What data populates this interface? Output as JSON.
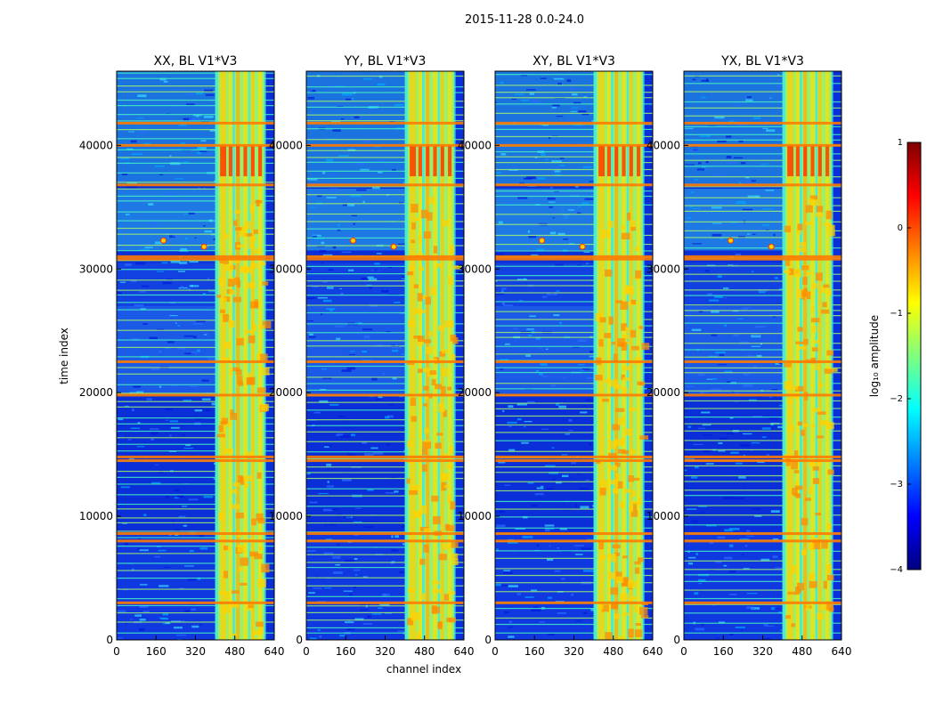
{
  "figure": {
    "suptitle": "2015-11-28 0.0-24.0",
    "xlabel": "channel index",
    "ylabel": "time index"
  },
  "colorbar": {
    "label": "log₁₀ amplitude",
    "ticks": [
      "1",
      "0",
      "−1",
      "−2",
      "−3",
      "−4"
    ],
    "range": [
      -4,
      1
    ],
    "colormap": "jet",
    "jet_colors": [
      "#00007f",
      "#0000ff",
      "#007fff",
      "#00ffff",
      "#7fff7f",
      "#ffff00",
      "#ff7f00",
      "#ff0000",
      "#7f0000"
    ]
  },
  "chart_data": [
    {
      "type": "heatmap",
      "title": "XX, BL V1*V3",
      "xlim": [
        0,
        640
      ],
      "ylim": [
        0,
        46000
      ],
      "xticks": [
        "0",
        "160",
        "320",
        "480",
        "640"
      ],
      "yticks": [
        "0",
        "10000",
        "20000",
        "30000",
        "40000"
      ],
      "bright_channel_band": [
        400,
        600
      ],
      "rfi_time_rows": [
        3000,
        8000,
        8600,
        14500,
        14800,
        19800,
        22500,
        30800,
        31000,
        36800,
        40000,
        41800
      ],
      "hot_spots": [
        {
          "channel": 190,
          "time": 32300
        },
        {
          "channel": 355,
          "time": 31800
        }
      ]
    },
    {
      "type": "heatmap",
      "title": "YY, BL V1*V3",
      "xlim": [
        0,
        640
      ],
      "ylim": [
        0,
        46000
      ],
      "xticks": [
        "0",
        "160",
        "320",
        "480",
        "640"
      ],
      "yticks": [
        "0",
        "10000",
        "20000",
        "30000",
        "40000"
      ],
      "bright_channel_band": [
        400,
        600
      ],
      "rfi_time_rows": [
        3000,
        8000,
        8600,
        14500,
        14800,
        19800,
        22500,
        30800,
        31000,
        36800,
        40000,
        41800
      ],
      "hot_spots": [
        {
          "channel": 190,
          "time": 32300
        },
        {
          "channel": 355,
          "time": 31800
        }
      ]
    },
    {
      "type": "heatmap",
      "title": "XY, BL V1*V3",
      "xlim": [
        0,
        640
      ],
      "ylim": [
        0,
        46000
      ],
      "xticks": [
        "0",
        "160",
        "320",
        "480",
        "640"
      ],
      "yticks": [
        "0",
        "10000",
        "20000",
        "30000",
        "40000"
      ],
      "bright_channel_band": [
        400,
        600
      ],
      "rfi_time_rows": [
        3000,
        8000,
        8600,
        14500,
        14800,
        19800,
        22500,
        30800,
        31000,
        36800,
        40000,
        41800
      ],
      "hot_spots": [
        {
          "channel": 190,
          "time": 32300
        },
        {
          "channel": 355,
          "time": 31800
        }
      ]
    },
    {
      "type": "heatmap",
      "title": "YX, BL V1*V3",
      "xlim": [
        0,
        640
      ],
      "ylim": [
        0,
        46000
      ],
      "xticks": [
        "0",
        "160",
        "320",
        "480",
        "640"
      ],
      "yticks": [
        "0",
        "10000",
        "20000",
        "30000",
        "40000"
      ],
      "bright_channel_band": [
        400,
        600
      ],
      "rfi_time_rows": [
        3000,
        8000,
        8600,
        14500,
        14800,
        19800,
        22500,
        30800,
        31000,
        36800,
        40000,
        41800
      ],
      "hot_spots": [
        {
          "channel": 190,
          "time": 32300
        },
        {
          "channel": 355,
          "time": 31800
        }
      ]
    }
  ]
}
